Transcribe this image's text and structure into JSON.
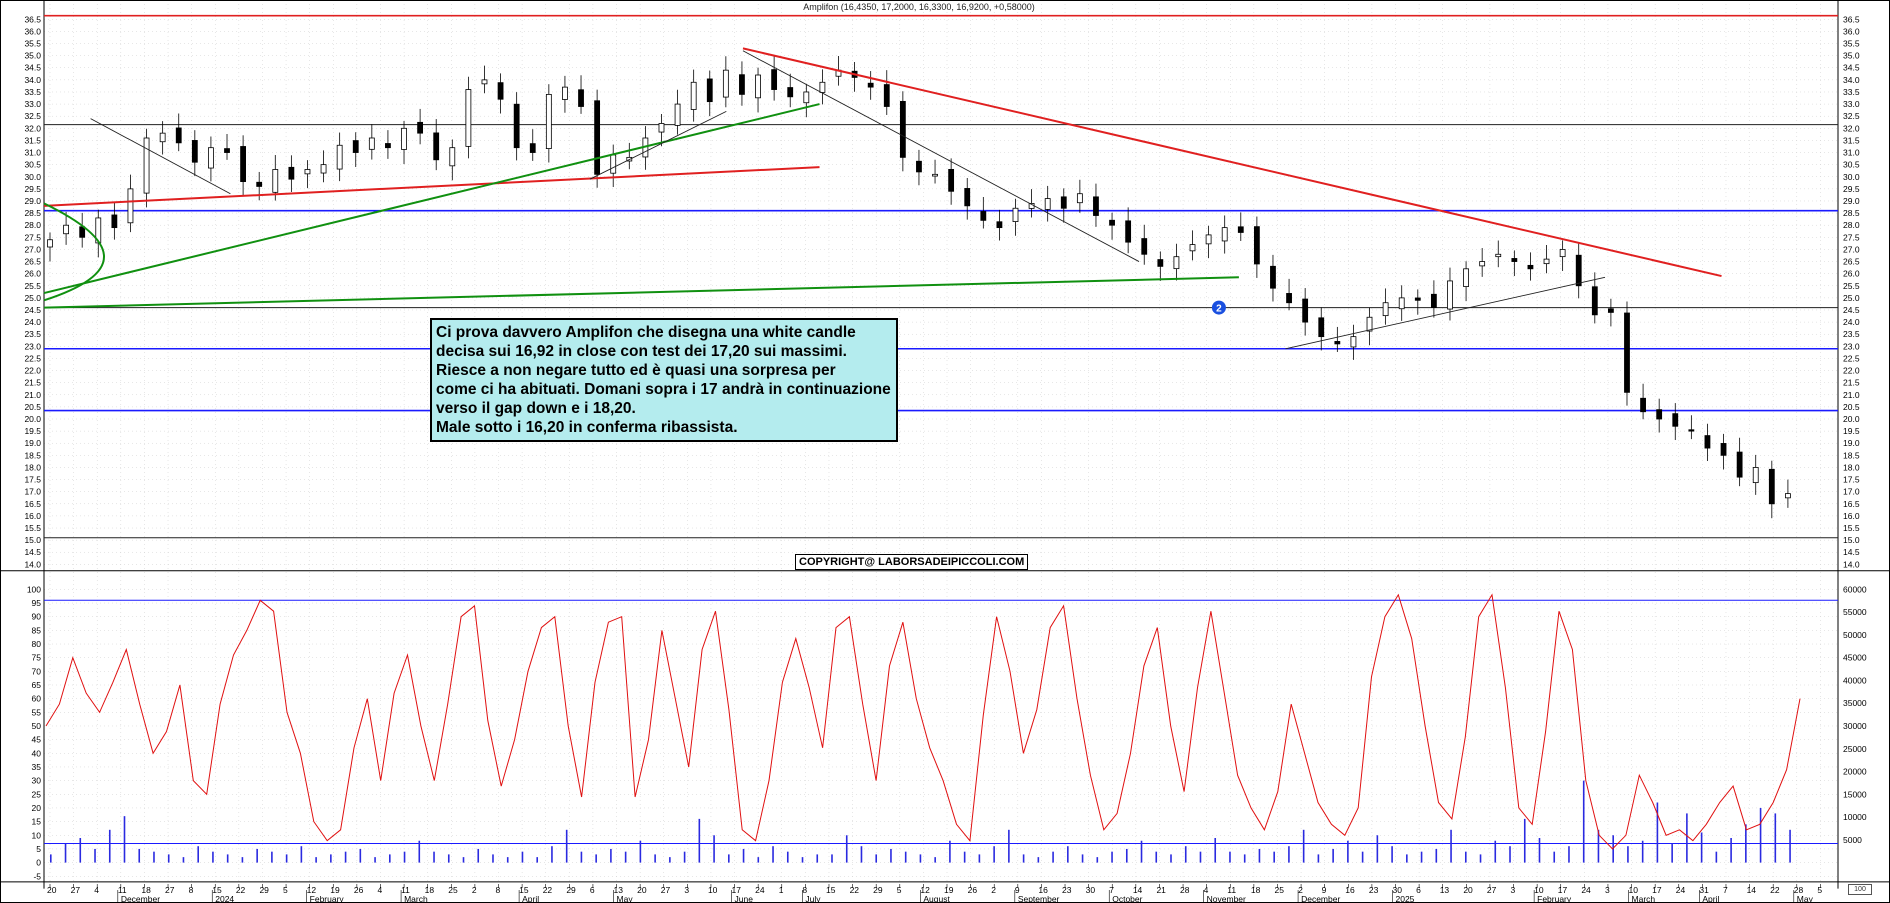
{
  "title": "Amplifon (16,4350, 17,2000, 16,3300, 16,9200, +0,58000)",
  "note": {
    "lines": [
      "Ci prova davvero Amplifon che disegna una white candle",
      "decisa sui 16,92 in close con test dei 17,20 sui massimi.",
      "Riesce a non negare tutto ed è quasi una sorpresa per",
      "come ci ha abituati. Domani sopra i 17 andrà in continuazione",
      "verso il gap down e i 18,20.",
      "Male sotto i 16,20 in conferma ribassista."
    ]
  },
  "copyright": "COPYRIGHT@ LABORSADEIPICCOLI.COM",
  "corner_badge": "100",
  "marker_label": "2",
  "colors": {
    "background": "#ffffff",
    "grid": "#cfcfcf",
    "red_line": "#e02020",
    "blue_line": "#1a1aff",
    "green_line": "#109010",
    "black_line": "#202020",
    "oscillator": "#e01010",
    "volume": "#2a2ae0",
    "note_bg": "#b4ecee",
    "marker": "#1a50e0"
  },
  "chart_data": [
    {
      "type": "candlestick",
      "title": "Amplifon (16,4350, 17,2000, 16,3300, 16,9200, +0,58000)",
      "ylim": [
        13.9,
        36.9
      ],
      "yticks": [
        "36.5",
        "36.0",
        "35.5",
        "35.0",
        "34.5",
        "34.0",
        "33.5",
        "33.0",
        "32.5",
        "32.0",
        "31.5",
        "31.0",
        "30.5",
        "30.0",
        "29.5",
        "29.0",
        "28.5",
        "28.0",
        "27.5",
        "27.0",
        "26.5",
        "26.0",
        "25.5",
        "25.0",
        "24.5",
        "24.0",
        "23.5",
        "23.0",
        "22.5",
        "22.0",
        "21.5",
        "21.0",
        "20.5",
        "20.0",
        "19.5",
        "19.0",
        "18.5",
        "18.0",
        "17.5",
        "17.0",
        "16.5",
        "16.0",
        "15.5",
        "15.0",
        "14.5",
        "14.0"
      ],
      "x_day_labels": [
        "20",
        "27",
        "4",
        "11",
        "18",
        "27",
        "8",
        "15",
        "22",
        "29",
        "5",
        "12",
        "19",
        "26",
        "4",
        "11",
        "18",
        "25",
        "2",
        "8",
        "15",
        "22",
        "29",
        "6",
        "13",
        "20",
        "27",
        "3",
        "10",
        "17",
        "24",
        "1",
        "8",
        "15",
        "22",
        "29",
        "5",
        "12",
        "19",
        "26",
        "2",
        "9",
        "16",
        "23",
        "30",
        "7",
        "14",
        "21",
        "28",
        "4",
        "11",
        "18",
        "25",
        "2",
        "9",
        "16",
        "23",
        "30",
        "6",
        "13",
        "20",
        "27",
        "3",
        "10",
        "17",
        "24",
        "3",
        "10",
        "17",
        "24",
        "31",
        "7",
        "14",
        "22",
        "28",
        "5"
      ],
      "x_month_labels": [
        "December",
        "2024",
        "February",
        "March",
        "April",
        "May",
        "June",
        "July",
        "August",
        "September",
        "October",
        "November",
        "December",
        "2025",
        "February",
        "March",
        "April",
        "May"
      ],
      "horizontal_levels": [
        {
          "price": 36.65,
          "color": "red"
        },
        {
          "price": 32.15,
          "color": "black"
        },
        {
          "price": 28.6,
          "color": "blue"
        },
        {
          "price": 24.6,
          "color": "black"
        },
        {
          "price": 22.9,
          "color": "blue"
        },
        {
          "price": 20.35,
          "color": "blue"
        },
        {
          "price": 15.1,
          "color": "black"
        }
      ],
      "trendlines": [
        {
          "from": [
            "2024-06-10",
            35.3
          ],
          "to": [
            "2025-03-31",
            25.9
          ],
          "color": "red"
        },
        {
          "from": [
            "2023-11-13",
            28.8
          ],
          "to": [
            "2024-07-03",
            30.4
          ],
          "color": "red"
        },
        {
          "from": [
            "2023-11-13",
            25.2
          ],
          "to": [
            "2024-07-03",
            33.0
          ],
          "color": "green"
        },
        {
          "from": [
            "2023-11-13",
            24.6
          ],
          "to": [
            "2024-11-06",
            25.85
          ],
          "color": "green"
        },
        {
          "from": [
            "2024-06-10",
            35.2
          ],
          "to": [
            "2024-10-07",
            26.5
          ],
          "color": "black"
        },
        {
          "from": [
            "2024-11-20",
            22.9
          ],
          "to": [
            "2025-02-24",
            25.85
          ],
          "color": "black"
        },
        {
          "from": [
            "2023-11-27",
            32.4
          ],
          "to": [
            "2024-01-08",
            29.3
          ],
          "color": "black"
        },
        {
          "from": [
            "2024-04-25",
            29.9
          ],
          "to": [
            "2024-06-05",
            32.7
          ],
          "color": "black"
        }
      ],
      "last_candle": {
        "open": 16.435,
        "high": 17.2,
        "low": 16.33,
        "close": 16.92,
        "change": 0.58
      },
      "closes_approx": [
        27.4,
        28.0,
        27.5,
        28.3,
        27.9,
        29.5,
        31.6,
        31.8,
        31.4,
        30.6,
        31.2,
        31.0,
        29.8,
        29.6,
        30.3,
        29.9,
        30.3,
        30.5,
        31.3,
        31.0,
        31.6,
        31.2,
        32.0,
        31.8,
        30.7,
        31.2,
        33.6,
        34.0,
        33.2,
        31.2,
        31.0,
        33.4,
        33.7,
        32.9,
        30.1,
        30.9,
        30.8,
        31.6,
        32.2,
        33.0,
        33.9,
        33.1,
        34.4,
        33.4,
        34.2,
        33.6,
        33.3,
        33.5,
        33.9,
        34.4,
        34.1,
        33.7,
        32.9,
        30.8,
        30.2,
        30.1,
        29.4,
        28.8,
        28.2,
        27.9,
        28.7,
        28.9,
        29.1,
        28.7,
        29.3,
        28.4,
        28.0,
        27.3,
        26.8,
        26.3,
        26.7,
        27.2,
        27.6,
        27.9,
        27.7,
        26.4,
        25.4,
        24.8,
        24.0,
        23.4,
        23.1,
        23.4,
        24.2,
        24.8,
        25.0,
        24.9,
        24.6,
        25.7,
        26.2,
        26.5,
        26.8,
        26.5,
        26.2,
        26.6,
        27.0,
        25.5,
        24.3,
        24.4,
        21.1,
        20.3,
        20.0,
        19.7,
        19.5,
        18.8,
        18.5,
        17.6,
        18.0,
        16.5,
        16.92
      ]
    },
    {
      "type": "line+bar",
      "name": "volume oscillator",
      "yticks_left": [
        "100",
        "95",
        "90",
        "85",
        "80",
        "75",
        "70",
        "65",
        "60",
        "55",
        "50",
        "45",
        "40",
        "35",
        "30",
        "25",
        "20",
        "15",
        "10",
        "5",
        "0",
        "-5"
      ],
      "yticks_right": [
        "60000",
        "55000",
        "50000",
        "45000",
        "40000",
        "35000",
        "30000",
        "25000",
        "20000",
        "15000",
        "10000",
        "5000"
      ],
      "ylim": [
        -6,
        103
      ],
      "horizontal_levels": [
        {
          "value": 96,
          "color": "blue"
        },
        {
          "value": 7,
          "color": "blue"
        }
      ],
      "oscillator_approx": [
        50,
        58,
        75,
        62,
        55,
        66,
        78,
        58,
        40,
        48,
        65,
        30,
        25,
        58,
        76,
        85,
        96,
        92,
        55,
        40,
        15,
        8,
        12,
        42,
        60,
        30,
        62,
        76,
        50,
        30,
        58,
        90,
        94,
        52,
        28,
        45,
        70,
        86,
        90,
        50,
        24,
        66,
        88,
        90,
        24,
        45,
        85,
        60,
        35,
        78,
        92,
        56,
        12,
        8,
        30,
        66,
        82,
        64,
        42,
        86,
        90,
        58,
        30,
        72,
        88,
        60,
        42,
        30,
        14,
        8,
        54,
        90,
        70,
        40,
        56,
        86,
        94,
        60,
        32,
        12,
        18,
        40,
        72,
        86,
        50,
        26,
        64,
        92,
        62,
        32,
        20,
        12,
        26,
        58,
        40,
        22,
        14,
        10,
        20,
        68,
        90,
        98,
        82,
        50,
        22,
        16,
        46,
        90,
        98,
        64,
        20,
        14,
        48,
        92,
        78,
        30,
        10,
        5,
        10,
        32,
        22,
        10,
        12,
        8,
        14,
        22,
        28,
        12,
        14,
        22,
        34,
        60
      ],
      "volume_approx": [
        3,
        7,
        9,
        5,
        12,
        17,
        5,
        4,
        3,
        2,
        6,
        4,
        3,
        2,
        5,
        4,
        3,
        6,
        2,
        3,
        4,
        5,
        2,
        3,
        4,
        8,
        4,
        3,
        2,
        5,
        3,
        2,
        4,
        2,
        6,
        12,
        4,
        3,
        5,
        4,
        8,
        3,
        2,
        4,
        16,
        10,
        3,
        5,
        2,
        6,
        4,
        2,
        3,
        3,
        10,
        6,
        3,
        5,
        4,
        3,
        2,
        8,
        4,
        3,
        6,
        12,
        3,
        2,
        4,
        6,
        3,
        2,
        4,
        5,
        8,
        4,
        3,
        6,
        4,
        9,
        4,
        3,
        5,
        4,
        6,
        12,
        3,
        5,
        8,
        4,
        10,
        6,
        3,
        4,
        5,
        12,
        4,
        3,
        8,
        6,
        16,
        9,
        4,
        6,
        30,
        12,
        10,
        6,
        8,
        22,
        7,
        18,
        11,
        4,
        9,
        14,
        20,
        18,
        12
      ]
    }
  ]
}
